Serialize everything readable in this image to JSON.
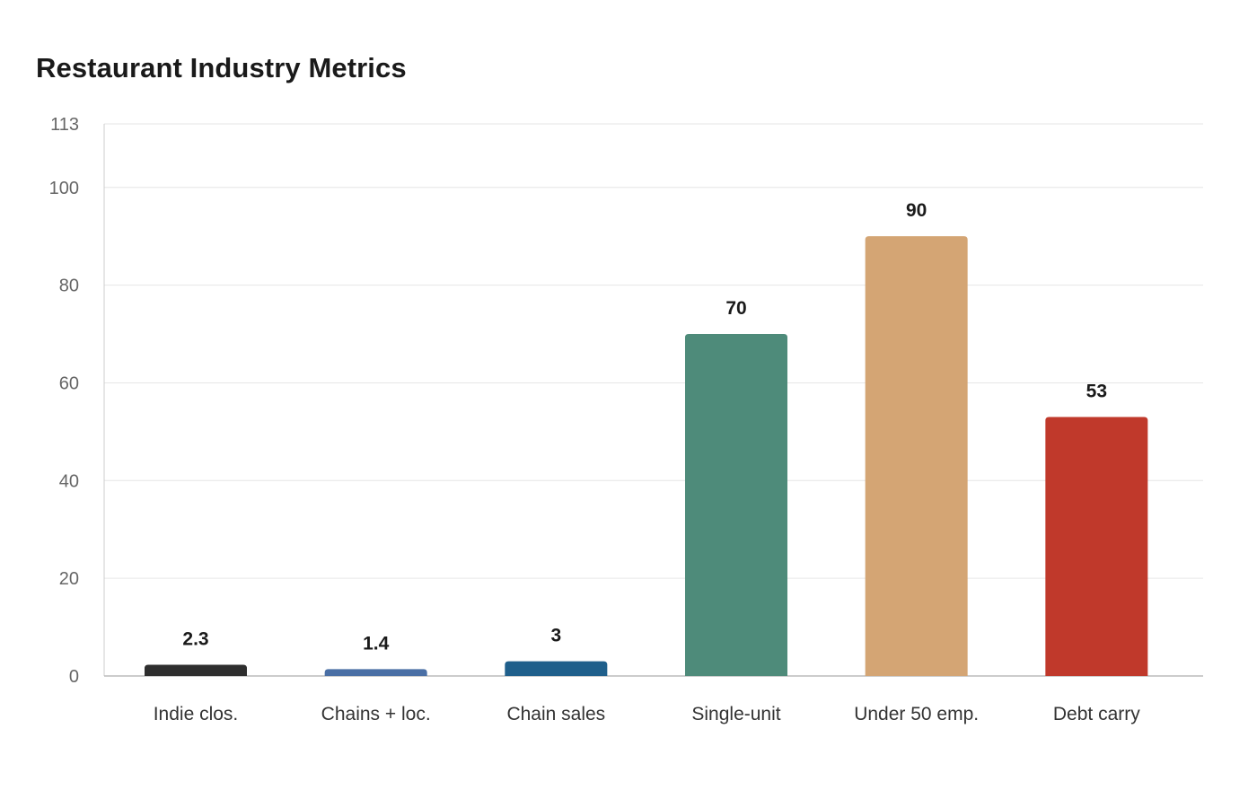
{
  "chart_data": {
    "type": "bar",
    "title": "Restaurant Industry Metrics",
    "xlabel": "",
    "ylabel": "",
    "categories": [
      "Indie clos.",
      "Chains + loc.",
      "Chain sales",
      "Single-unit",
      "Under 50 emp.",
      "Debt carry"
    ],
    "values": [
      2.3,
      1.4,
      3,
      70,
      90,
      53
    ],
    "data_labels": [
      "2.3",
      "1.4",
      "3",
      "70",
      "90",
      "53"
    ],
    "colors": [
      "#2e2e2e",
      "#4a6fa5",
      "#1f5f8b",
      "#4e8b7a",
      "#d4a574",
      "#c0392b"
    ],
    "ylim": [
      0,
      113
    ],
    "yticks": [
      0,
      20,
      40,
      60,
      80,
      100,
      113
    ],
    "ytick_labels": [
      "0",
      "20",
      "40",
      "60",
      "80",
      "100",
      "113"
    ],
    "grid": true,
    "legend": "none"
  }
}
